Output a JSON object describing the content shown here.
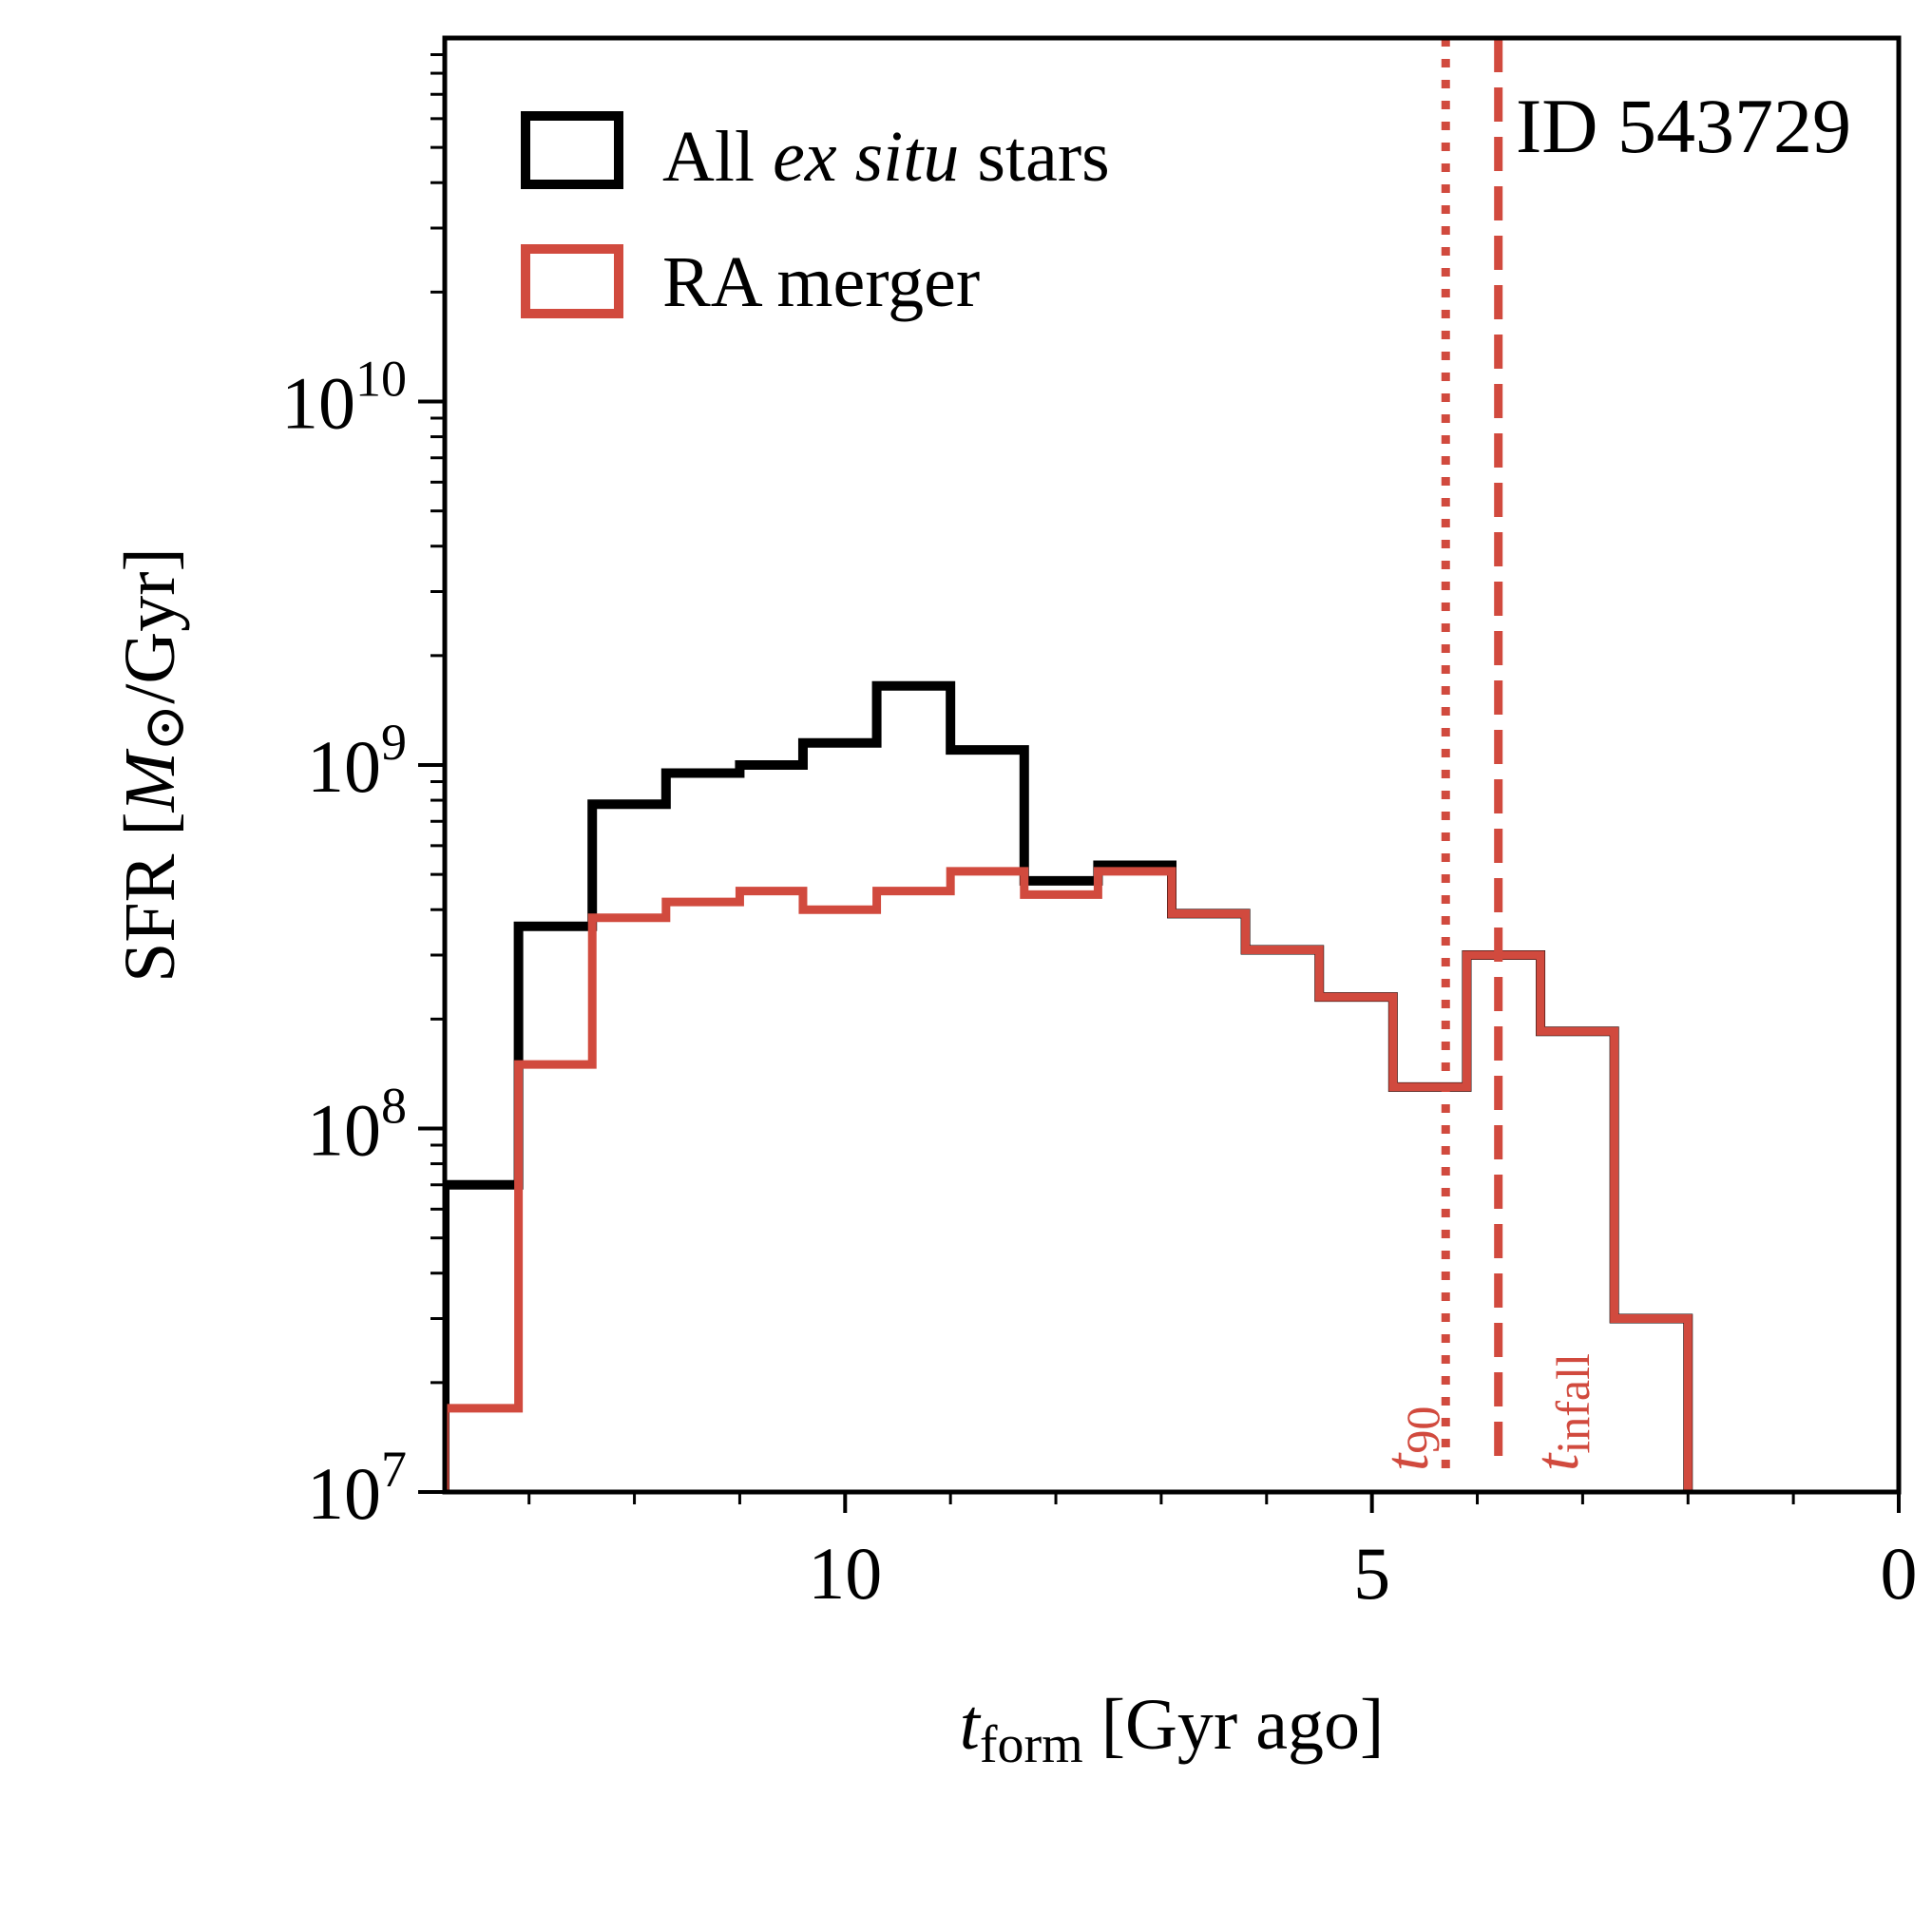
{
  "chart_data": {
    "type": "histogram-step",
    "title": "",
    "annotation_id": "ID 543729",
    "xlabel": {
      "var": "t",
      "sub": "form",
      "rest": " [Gyr ago]"
    },
    "ylabel": {
      "pre": "SFR [",
      "var": "M",
      "sym": "⊙",
      "post": "/Gyr]"
    },
    "xlim": [
      13.8,
      0
    ],
    "ylim": [
      10000000.0,
      100000000000.0
    ],
    "yscale": "log",
    "x_ticks": [
      10,
      5,
      0
    ],
    "x_tick_labels": [
      "10",
      "5",
      "0"
    ],
    "x_minor_ticks": [
      13,
      12,
      11,
      9,
      8,
      7,
      6,
      4,
      3,
      2,
      1
    ],
    "y_ticks": [
      {
        "base": "10",
        "exp": "7",
        "value": 10000000.0
      },
      {
        "base": "10",
        "exp": "8",
        "value": 100000000.0
      },
      {
        "base": "10",
        "exp": "9",
        "value": 1000000000.0
      },
      {
        "base": "10",
        "exp": "10",
        "value": 10000000000.0
      }
    ],
    "bin_edges": [
      13.8,
      13.1,
      12.4,
      11.7,
      11.0,
      10.4,
      9.7,
      9.0,
      8.3,
      7.6,
      6.9,
      6.2,
      5.5,
      4.8,
      4.1,
      3.4,
      2.7,
      2.0
    ],
    "series": [
      {
        "name": "All ex situ stars",
        "legend": {
          "pre": "All ",
          "ital": "ex situ",
          "post": " stars"
        },
        "color": "#000000",
        "values": [
          70000000.0,
          360000000.0,
          780000000.0,
          950000000.0,
          1000000000.0,
          1150000000.0,
          1650000000.0,
          1100000000.0,
          480000000.0,
          530000000.0,
          390000000.0,
          310000000.0,
          230000000.0,
          130000000.0,
          300000000.0,
          185000000.0,
          30000000.0
        ]
      },
      {
        "name": "RA merger",
        "legend": {
          "pre": "RA merger",
          "ital": "",
          "post": ""
        },
        "color": "#d14a3e",
        "values": [
          17000000.0,
          150000000.0,
          380000000.0,
          420000000.0,
          450000000.0,
          400000000.0,
          450000000.0,
          510000000.0,
          440000000.0,
          510000000.0,
          390000000.0,
          310000000.0,
          230000000.0,
          130000000.0,
          300000000.0,
          185000000.0,
          30000000.0
        ]
      }
    ],
    "vlines": [
      {
        "name": "t90",
        "x": 4.3,
        "style": "dotted",
        "color": "#d14a3e",
        "label_var": "t",
        "label_sub": "90"
      },
      {
        "name": "tinfall",
        "x": 3.8,
        "style": "dashed",
        "color": "#d14a3e",
        "label_var": "t",
        "label_sub": "infall"
      }
    ]
  }
}
